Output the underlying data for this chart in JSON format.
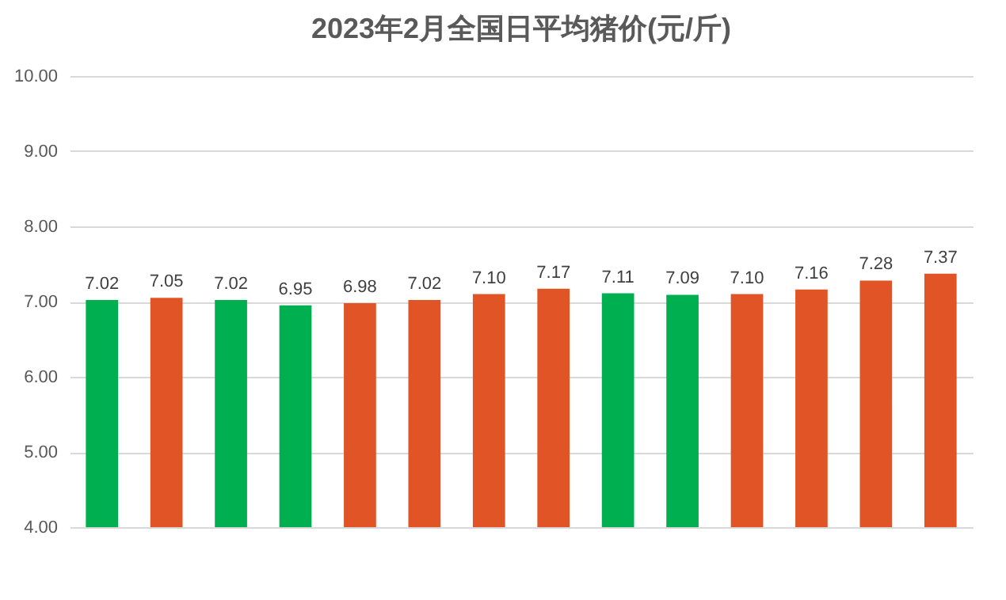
{
  "chart_data": {
    "type": "bar",
    "title": "2023年2月全国日平均猪价(元/斤)",
    "categories": [
      null,
      null,
      null,
      null,
      null,
      null,
      null,
      null,
      null,
      null,
      null,
      null,
      null,
      null
    ],
    "values": [
      7.02,
      7.05,
      7.02,
      6.95,
      6.98,
      7.02,
      7.1,
      7.17,
      7.11,
      7.09,
      7.1,
      7.16,
      7.28,
      7.37
    ],
    "colors": [
      "#00b050",
      "#e05426",
      "#00b050",
      "#00b050",
      "#e05426",
      "#e05426",
      "#e05426",
      "#e05426",
      "#00b050",
      "#00b050",
      "#e05426",
      "#e05426",
      "#e05426",
      "#e05426"
    ],
    "value_labels": [
      "7.02",
      "7.05",
      "7.02",
      "6.95",
      "6.98",
      "7.02",
      "7.10",
      "7.17",
      "7.11",
      "7.09",
      "7.10",
      "7.16",
      "7.28",
      "7.37"
    ],
    "ylim": [
      4,
      10
    ],
    "yticks": [
      {
        "value": 4,
        "label": "4.00"
      },
      {
        "value": 5,
        "label": "5.00"
      },
      {
        "value": 6,
        "label": "6.00"
      },
      {
        "value": 7,
        "label": "7.00"
      },
      {
        "value": 8,
        "label": "8.00"
      },
      {
        "value": 9,
        "label": "9.00"
      },
      {
        "value": 10,
        "label": "10.00"
      }
    ],
    "grid": "y",
    "tick_labels": "y"
  }
}
